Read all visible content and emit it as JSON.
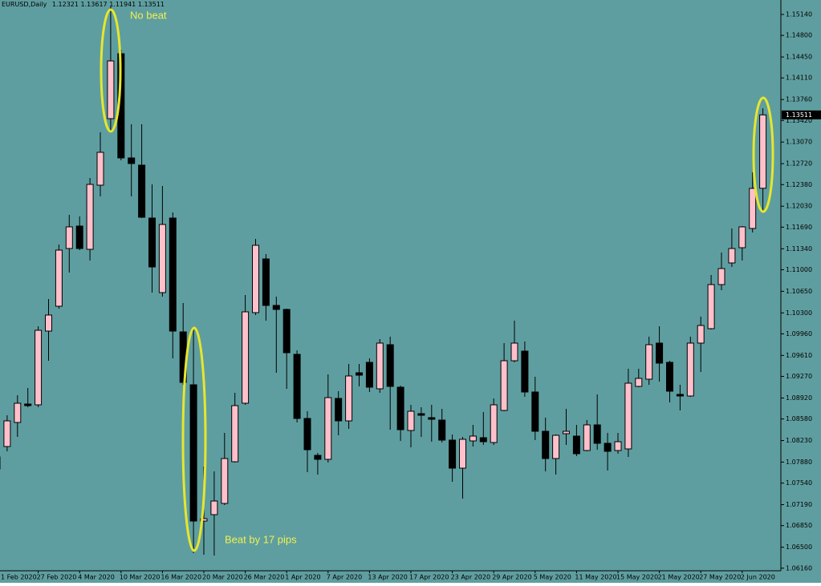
{
  "chart_data": {
    "type": "candlestick",
    "title": "EURUSD,Daily",
    "annotations": [
      "No beat",
      "Beat by 17 pips"
    ],
    "up_color": "#ffc0cb",
    "down_color": "#000000",
    "background": "#5f9ea0",
    "grid": false,
    "categories": [
      "1 Feb 2020",
      null,
      null,
      null,
      "27 Feb 2020",
      null,
      null,
      null,
      "4 Mar 2020",
      null,
      null,
      null,
      "10 Mar 2020",
      null,
      null,
      null,
      "16 Mar 2020",
      null,
      null,
      null,
      "20 Mar 2020",
      null,
      null,
      null,
      "26 Mar 2020",
      null,
      null,
      null,
      "1 Apr 2020",
      null,
      null,
      null,
      "7 Apr 2020",
      null,
      null,
      null,
      "13 Apr 2020",
      null,
      null,
      null,
      "17 Apr 2020",
      null,
      null,
      null,
      "23 Apr 2020",
      null,
      null,
      null,
      "29 Apr 2020",
      null,
      null,
      null,
      "5 May 2020",
      null,
      null,
      null,
      "11 May 2020",
      null,
      null,
      null,
      "15 May 2020",
      null,
      null,
      null,
      "21 May 2020",
      null,
      null,
      null,
      "27 May 2020",
      null,
      null,
      null,
      "2 Jun 2020",
      null,
      null
    ],
    "open": [
      1.07769,
      1.08133,
      1.08523,
      1.08822,
      1.08809,
      1.10005,
      1.10408,
      1.11344,
      1.11708,
      1.11331,
      1.12371,
      1.1345,
      1.14503,
      1.12813,
      1.12696,
      1.11838,
      1.10629,
      1.11838,
      1.09992,
      1.09134,
      1.06924,
      1.07028,
      1.0721,
      1.07886,
      1.08835,
      1.10304,
      1.11175,
      1.10421,
      1.10356,
      1.09628,
      1.08588,
      1.0799,
      1.07925,
      1.08913,
      1.08549,
      1.09329,
      1.09498,
      1.09069,
      1.09784,
      1.09095,
      1.08393,
      1.08666,
      1.08601,
      1.08562,
      1.08237,
      1.07782,
      1.08224,
      1.08276,
      1.08198,
      1.08718,
      1.09524,
      1.0968,
      1.09017,
      1.0838,
      1.07938,
      1.08341,
      1.08302,
      1.08068,
      1.08484,
      1.08185,
      1.08068,
      1.08094,
      1.09108,
      1.09225,
      1.0981,
      1.09498,
      1.08978,
      1.08952,
      1.0981,
      1.10044,
      1.10759,
      1.1111,
      1.11357,
      1.11669,
      1.12321
    ],
    "high": [
      1.08094,
      1.0864,
      1.08965,
      1.09082,
      1.10083,
      1.10525,
      1.11409,
      1.1189,
      1.11864,
      1.12488,
      1.13229,
      1.1527,
      1.14568,
      1.13359,
      1.13359,
      1.12384,
      1.12358,
      1.11929,
      1.1046,
      1.10044,
      1.07808,
      1.0773,
      1.08354,
      1.09004,
      1.1059,
      1.115,
      1.11253,
      1.10564,
      1.10369,
      1.09693,
      1.08705,
      1.08029,
      1.09303,
      1.0903,
      1.09472,
      1.09472,
      1.09563,
      1.09875,
      1.09914,
      1.09121,
      1.08809,
      1.0877,
      1.08809,
      1.08744,
      1.08328,
      1.08289,
      1.08484,
      1.08692,
      1.08913,
      1.0981,
      1.10174,
      1.09836,
      1.09264,
      1.08601,
      1.08328,
      1.08744,
      1.08484,
      1.08562,
      1.08978,
      1.08354,
      1.08354,
      1.09394,
      1.09394,
      1.09914,
      1.10083,
      1.09524,
      1.09134,
      1.09914,
      1.10239,
      1.10915,
      1.11279,
      1.11669,
      1.11708,
      1.12579,
      1.13617
    ],
    "low": [
      1.07639,
      1.08055,
      1.08289,
      1.0877,
      1.0877,
      1.09524,
      1.10369,
      1.10954,
      1.11318,
      1.11149,
      1.12189,
      1.13229,
      1.12774,
      1.12189,
      1.11838,
      1.10629,
      1.10564,
      1.09563,
      1.09134,
      1.06404,
      1.06378,
      1.06365,
      1.07184,
      1.07873,
      1.08809,
      1.10265,
      1.10174,
      1.09329,
      1.09069,
      1.08523,
      1.07717,
      1.07678,
      1.07873,
      1.08315,
      1.08419,
      1.09108,
      1.09017,
      1.09004,
      1.08406,
      1.08224,
      1.0812,
      1.08289,
      1.08211,
      1.08198,
      1.07561,
      1.07288,
      1.08133,
      1.08159,
      1.08159,
      1.08705,
      1.09498,
      1.08939,
      1.08237,
      1.0773,
      1.07678,
      1.08159,
      1.07977,
      1.08055,
      1.08081,
      1.07743,
      1.08016,
      1.07964,
      1.09095,
      1.09134,
      1.09186,
      1.08848,
      1.08718,
      1.08939,
      1.09342,
      1.10031,
      1.10668,
      1.11045,
      1.11149,
      1.11604,
      1.11941
    ],
    "close": [
      1.07964,
      1.08549,
      1.08835,
      1.08796,
      1.10018,
      1.10265,
      1.11318,
      1.11695,
      1.11344,
      1.12384,
      1.12904,
      1.14386,
      1.12813,
      1.12722,
      1.11851,
      1.11045,
      1.11734,
      1.10005,
      1.09173,
      1.06924,
      1.06963,
      1.07249,
      1.07938,
      1.08796,
      1.10317,
      1.11396,
      1.10421,
      1.10356,
      1.09654,
      1.08588,
      1.08081,
      1.07925,
      1.08926,
      1.08549,
      1.09277,
      1.0929,
      1.09095,
      1.0981,
      1.09108,
      1.08406,
      1.08705,
      1.0864,
      1.08575,
      1.08237,
      1.07782,
      1.0825,
      1.08302,
      1.08211,
      1.08809,
      1.09524,
      1.0981,
      1.09017,
      1.0838,
      1.07938,
      1.08315,
      1.0838,
      1.08016,
      1.08484,
      1.08185,
      1.08055,
      1.08211,
      1.0916,
      1.09238,
      1.09784,
      1.09485,
      1.0903,
      1.08952,
      1.0981,
      1.10096,
      1.10759,
      1.11019,
      1.11344,
      1.11695,
      1.12319,
      1.13511
    ],
    "ylim": [
      1.06118,
      1.15374
    ],
    "yticks": [
      {
        "value": 1.1514,
        "label": "1.15140"
      },
      {
        "value": 1.148,
        "label": "1.14800"
      },
      {
        "value": 1.1445,
        "label": "1.14450"
      },
      {
        "value": 1.1411,
        "label": "1.14110"
      },
      {
        "value": 1.1376,
        "label": "1.13760"
      },
      {
        "value": 1.1342,
        "label": "1.13420"
      },
      {
        "value": 1.1307,
        "label": "1.13070"
      },
      {
        "value": 1.1272,
        "label": "1.12720"
      },
      {
        "value": 1.1238,
        "label": "1.12380"
      },
      {
        "value": 1.1203,
        "label": "1.12030"
      },
      {
        "value": 1.1169,
        "label": "1.11690"
      },
      {
        "value": 1.1134,
        "label": "1.11340"
      },
      {
        "value": 1.11,
        "label": "1.11000"
      },
      {
        "value": 1.1065,
        "label": "1.10650"
      },
      {
        "value": 1.103,
        "label": "1.10300"
      },
      {
        "value": 1.0996,
        "label": "1.09960"
      },
      {
        "value": 1.0961,
        "label": "1.09610"
      },
      {
        "value": 1.0927,
        "label": "1.09270"
      },
      {
        "value": 1.0892,
        "label": "1.08920"
      },
      {
        "value": 1.0858,
        "label": "1.08580"
      },
      {
        "value": 1.0823,
        "label": "1.08230"
      },
      {
        "value": 1.0788,
        "label": "1.07880"
      },
      {
        "value": 1.0754,
        "label": "1.07540"
      },
      {
        "value": 1.0719,
        "label": "1.07190"
      },
      {
        "value": 1.0685,
        "label": "1.06850"
      },
      {
        "value": 1.065,
        "label": "1.06500"
      },
      {
        "value": 1.0616,
        "label": "1.06160"
      }
    ]
  }
}
